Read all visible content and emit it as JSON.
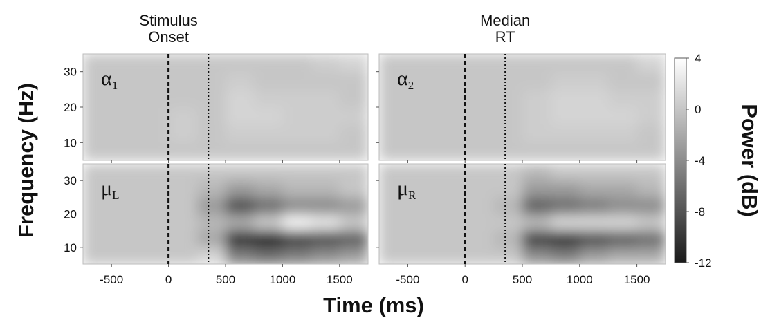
{
  "chart_data": [
    {
      "type": "heatmap",
      "label": "α",
      "label_sub": "1",
      "x": [
        -625,
        -375,
        -125,
        125,
        375,
        625,
        875,
        1125,
        1375,
        1625
      ],
      "y": [
        7.5,
        12.5,
        17.5,
        22.5,
        27.5,
        32.5
      ],
      "z": [
        [
          0,
          0,
          0,
          0,
          0,
          0,
          0,
          0,
          0,
          0
        ],
        [
          0,
          0,
          0,
          0.5,
          0,
          0.5,
          0.5,
          0.5,
          0.5,
          0
        ],
        [
          0,
          0,
          0,
          0.5,
          0,
          1,
          1,
          0.5,
          0.5,
          0.5
        ],
        [
          0,
          0,
          0,
          0,
          0,
          1,
          0.5,
          0.5,
          0.5,
          0
        ],
        [
          0,
          0,
          0,
          0,
          0,
          0.5,
          0,
          0,
          0,
          0
        ],
        [
          0,
          0,
          0,
          0,
          0,
          0,
          0,
          0,
          0.5,
          1
        ]
      ],
      "xlim": [
        -750,
        1750
      ],
      "xticks": [
        -500,
        0,
        500,
        1000,
        1500
      ],
      "ylim": [
        5,
        35
      ],
      "yticks": [
        10,
        20,
        30
      ],
      "vlines": [
        {
          "x": 0,
          "style": "dashed"
        },
        {
          "x": 350,
          "style": "dotted"
        }
      ]
    },
    {
      "type": "heatmap",
      "label": "α",
      "label_sub": "2",
      "x": [
        -625,
        -375,
        -125,
        125,
        375,
        625,
        875,
        1125,
        1375,
        1625
      ],
      "y": [
        7.5,
        12.5,
        17.5,
        22.5,
        27.5,
        32.5
      ],
      "z": [
        [
          0,
          0,
          0,
          0,
          0,
          0,
          0,
          0,
          0,
          0
        ],
        [
          0,
          0,
          0,
          0,
          0,
          0.5,
          0.5,
          0.5,
          0.5,
          0
        ],
        [
          0,
          0,
          0,
          0,
          0,
          0.5,
          1,
          1,
          1,
          0.5
        ],
        [
          0,
          0,
          0,
          0,
          0,
          0.5,
          1,
          1,
          0.5,
          0.5
        ],
        [
          0,
          0,
          0,
          0,
          0,
          0,
          0.5,
          0.5,
          0,
          0
        ],
        [
          0,
          0,
          0,
          0,
          0,
          0,
          0,
          0,
          0,
          1
        ]
      ],
      "xlim": [
        -750,
        1750
      ],
      "xticks": [
        -500,
        0,
        500,
        1000,
        1500
      ],
      "ylim": [
        5,
        35
      ],
      "yticks": [
        10,
        20,
        30
      ],
      "vlines": [
        {
          "x": 0,
          "style": "dashed"
        },
        {
          "x": 350,
          "style": "dotted"
        }
      ]
    },
    {
      "type": "heatmap",
      "label": "μ",
      "label_sub": "L",
      "x": [
        -625,
        -375,
        -125,
        125,
        375,
        625,
        875,
        1125,
        1375,
        1625
      ],
      "y": [
        7.5,
        12.5,
        17.5,
        22.5,
        27.5,
        32.5
      ],
      "z": [
        [
          0,
          0,
          0,
          0,
          1,
          -5,
          -6,
          -5,
          -4,
          -3
        ],
        [
          0,
          0,
          0,
          0,
          -2,
          -10,
          -11,
          -9,
          -8,
          -7
        ],
        [
          0,
          0,
          0,
          0,
          -1,
          -2,
          0,
          3,
          2,
          0
        ],
        [
          0,
          0,
          0,
          0,
          -3,
          -8,
          -6,
          -4,
          -4,
          -3
        ],
        [
          0,
          0,
          0,
          0,
          -1,
          -3,
          -2,
          -1,
          -1,
          0
        ],
        [
          0,
          0,
          0,
          0,
          0,
          0,
          0,
          0,
          0,
          0
        ]
      ],
      "xlim": [
        -750,
        1750
      ],
      "xticks": [
        -500,
        0,
        500,
        1000,
        1500
      ],
      "ylim": [
        5,
        35
      ],
      "yticks": [
        10,
        20,
        30
      ],
      "vlines": [
        {
          "x": 0,
          "style": "dashed"
        },
        {
          "x": 350,
          "style": "dotted"
        }
      ]
    },
    {
      "type": "heatmap",
      "label": "μ",
      "label_sub": "R",
      "x": [
        -625,
        -375,
        -125,
        125,
        375,
        625,
        875,
        1125,
        1375,
        1625
      ],
      "y": [
        7.5,
        12.5,
        17.5,
        22.5,
        27.5,
        32.5
      ],
      "z": [
        [
          0,
          0,
          0,
          0,
          0,
          -4,
          -5,
          -3,
          -2,
          -2
        ],
        [
          0,
          0,
          0,
          0,
          -1,
          -9,
          -10,
          -8,
          -7,
          -6
        ],
        [
          0,
          0,
          0,
          0,
          0,
          -1,
          1,
          1,
          1,
          0
        ],
        [
          0,
          0,
          0,
          0,
          -1,
          -7,
          -6,
          -5,
          -4,
          -4
        ],
        [
          0,
          0,
          0,
          0,
          0,
          -3,
          -3,
          -2,
          -2,
          -1
        ],
        [
          0,
          0,
          0,
          0,
          0,
          -1,
          0,
          0,
          0,
          0
        ]
      ],
      "xlim": [
        -750,
        1750
      ],
      "xticks": [
        -500,
        0,
        500,
        1000,
        1500
      ],
      "ylim": [
        5,
        35
      ],
      "yticks": [
        10,
        20,
        30
      ],
      "vlines": [
        {
          "x": 0,
          "style": "dashed"
        },
        {
          "x": 350,
          "style": "dotted"
        }
      ]
    }
  ],
  "figure": {
    "xlabel": "Time (ms)",
    "ylabel": "Frequency (Hz)",
    "annotations": [
      {
        "lines": [
          "Stimulus",
          "Onset"
        ]
      },
      {
        "lines": [
          "Median",
          "RT"
        ]
      }
    ],
    "colorbar": {
      "label": "Power (dB)",
      "zlim": [
        -12,
        4
      ],
      "zticks": [
        -12,
        -8,
        -4,
        0,
        4
      ],
      "colormap": [
        "#1a1a1a",
        "#ffffff"
      ]
    }
  }
}
